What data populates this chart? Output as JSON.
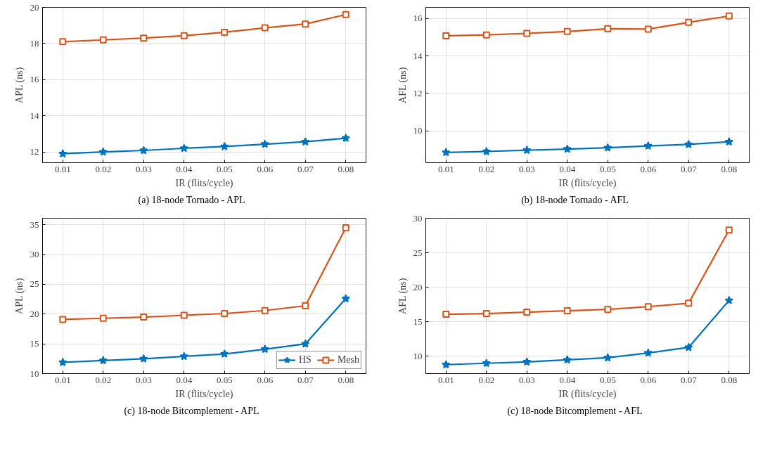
{
  "chart_data": [
    {
      "type": "line",
      "title": "(a) 18-node Tornado - APL",
      "xlabel": "IR (flits/cycle)",
      "ylabel": "APL (ns)",
      "categories": [
        "0.01",
        "0.02",
        "0.03",
        "0.04",
        "0.05",
        "0.06",
        "0.07",
        "0.08"
      ],
      "ylim": [
        11.4,
        20
      ],
      "yticks": [
        12,
        14,
        16,
        18,
        20
      ],
      "grid": true,
      "series": [
        {
          "color": "#0072bd",
          "marker": "star",
          "values": [
            11.9,
            12.0,
            12.08,
            12.2,
            12.3,
            12.43,
            12.56,
            12.76
          ]
        },
        {
          "color": "#d95319",
          "marker": "square",
          "values": [
            18.1,
            18.2,
            18.3,
            18.43,
            18.62,
            18.87,
            19.08,
            19.6
          ]
        }
      ]
    },
    {
      "type": "line",
      "title": "(b) 18-node Tornado - AFL",
      "xlabel": "IR (flits/cycle)",
      "ylabel": "AFL (ns)",
      "categories": [
        "0.01",
        "0.02",
        "0.03",
        "0.04",
        "0.05",
        "0.06",
        "0.07",
        "0.08"
      ],
      "ylim": [
        8.3,
        16.6
      ],
      "yticks": [
        10,
        12,
        14,
        16
      ],
      "grid": true,
      "series": [
        {
          "color": "#0072bd",
          "marker": "star",
          "values": [
            8.85,
            8.9,
            8.97,
            9.03,
            9.1,
            9.2,
            9.28,
            9.42
          ]
        },
        {
          "color": "#d95319",
          "marker": "square",
          "values": [
            15.08,
            15.13,
            15.21,
            15.31,
            15.46,
            15.44,
            15.8,
            16.14
          ]
        }
      ]
    },
    {
      "type": "line",
      "title": "(c) 18-node Bitcomplement - APL",
      "xlabel": "IR (flits/cycle)",
      "ylabel": "APL (ns)",
      "categories": [
        "0.01",
        "0.02",
        "0.03",
        "0.04",
        "0.05",
        "0.06",
        "0.07",
        "0.08"
      ],
      "ylim": [
        10,
        36.1
      ],
      "yticks": [
        10,
        15,
        20,
        25,
        30,
        35
      ],
      "grid": true,
      "legend": "bottom right",
      "series": [
        {
          "name": "HS",
          "color": "#0072bd",
          "marker": "star",
          "values": [
            11.9,
            12.2,
            12.5,
            12.9,
            13.3,
            14.1,
            15.0,
            22.6
          ]
        },
        {
          "name": "Mesh",
          "color": "#d95319",
          "marker": "square",
          "values": [
            19.1,
            19.3,
            19.5,
            19.8,
            20.1,
            20.6,
            21.4,
            34.5
          ]
        }
      ]
    },
    {
      "type": "line",
      "title": "(c) 18-node Bitcomplement - AFL",
      "xlabel": "IR (flits/cycle)",
      "ylabel": "AFL (ns)",
      "categories": [
        "0.01",
        "0.02",
        "0.03",
        "0.04",
        "0.05",
        "0.06",
        "0.07",
        "0.08"
      ],
      "ylim": [
        7.5,
        30
      ],
      "yticks": [
        10,
        15,
        20,
        25,
        30
      ],
      "grid": true,
      "series": [
        {
          "color": "#0072bd",
          "marker": "star",
          "values": [
            8.8,
            9.0,
            9.2,
            9.5,
            9.8,
            10.5,
            11.3,
            18.1
          ]
        },
        {
          "color": "#d95319",
          "marker": "square",
          "values": [
            16.1,
            16.2,
            16.4,
            16.6,
            16.8,
            17.2,
            17.7,
            28.3
          ]
        }
      ]
    }
  ]
}
